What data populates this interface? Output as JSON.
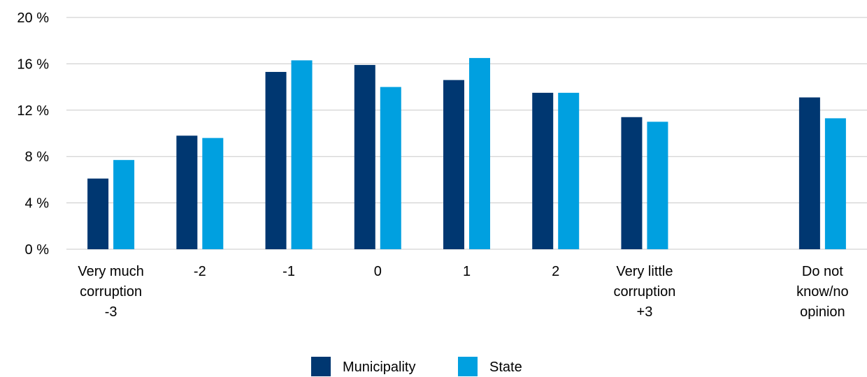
{
  "chart_data": {
    "type": "bar",
    "categories": [
      [
        "Very much",
        "corruption",
        "-3"
      ],
      [
        "-2"
      ],
      [
        "-1"
      ],
      [
        "0"
      ],
      [
        "1"
      ],
      [
        "2"
      ],
      [
        "Very little",
        "corruption",
        "+3"
      ],
      [],
      [
        "Do not",
        "know/no",
        "opinion"
      ]
    ],
    "series": [
      {
        "name": "Municipality",
        "color": "#003771",
        "values": [
          6.1,
          9.8,
          15.3,
          15.9,
          14.6,
          13.5,
          11.4,
          null,
          13.1
        ]
      },
      {
        "name": "State",
        "color": "#00A0E0",
        "values": [
          7.7,
          9.6,
          16.3,
          14.0,
          16.5,
          13.5,
          11.0,
          null,
          11.3
        ]
      }
    ],
    "yticks": [
      "0 %",
      "4 %",
      "8 %",
      "12 %",
      "16 %",
      "20 %"
    ],
    "ytick_values": [
      0,
      4,
      8,
      12,
      16,
      20
    ],
    "ylim": [
      0,
      20
    ],
    "grid": true,
    "legend": "bottom-center",
    "title": "",
    "xlabel": "",
    "ylabel": ""
  }
}
